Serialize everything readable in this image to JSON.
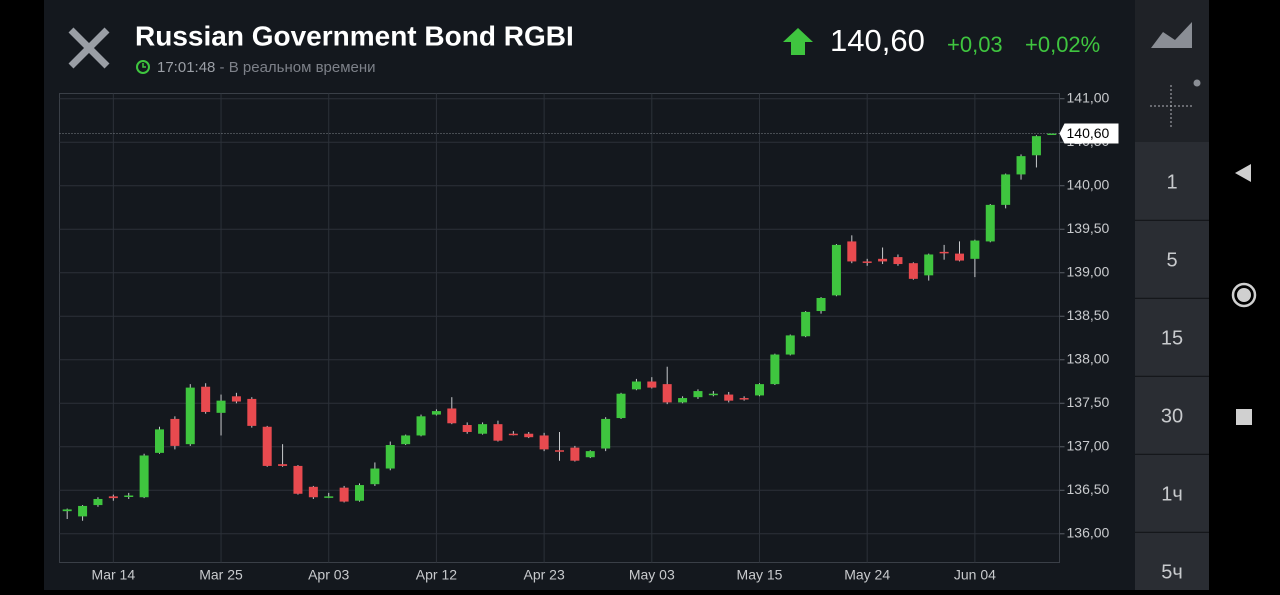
{
  "header": {
    "title": "Russian Government Bond RGBI",
    "time": "17:01:48",
    "status": " - В реальном времени",
    "price": "140,60",
    "change": "+0,03",
    "change_pct": "+0,02%"
  },
  "sidebar": {
    "intervals": [
      "1",
      "5",
      "15",
      "30",
      "1ч",
      "5ч"
    ]
  },
  "chart_data": {
    "type": "candlestick",
    "categories": [
      null,
      null,
      null,
      "Mar 14",
      null,
      null,
      null,
      null,
      null,
      null,
      "Mar 25",
      null,
      null,
      null,
      null,
      null,
      null,
      "Apr 03",
      null,
      null,
      null,
      null,
      null,
      null,
      "Apr 12",
      null,
      null,
      null,
      null,
      null,
      null,
      "Apr 23",
      null,
      null,
      null,
      null,
      null,
      null,
      "May 03",
      null,
      null,
      null,
      null,
      null,
      null,
      "May 15",
      null,
      null,
      null,
      null,
      null,
      null,
      "May 24",
      null,
      null,
      null,
      null,
      null,
      null,
      "Jun 04",
      null,
      null,
      null,
      null,
      null
    ],
    "open": [
      136.26,
      136.2,
      136.33,
      136.43,
      136.43,
      136.42,
      136.93,
      137.32,
      137.03,
      137.69,
      137.39,
      137.58,
      137.55,
      137.23,
      136.8,
      136.78,
      136.54,
      136.43,
      136.53,
      136.38,
      136.57,
      136.75,
      137.03,
      137.13,
      137.37,
      137.44,
      137.25,
      137.15,
      137.26,
      137.15,
      137.15,
      137.13,
      136.96,
      136.99,
      136.88,
      136.98,
      137.33,
      137.66,
      137.75,
      137.72,
      137.51,
      137.57,
      137.61,
      137.6,
      137.56,
      137.59,
      137.72,
      138.06,
      138.27,
      138.56,
      138.74,
      139.36,
      139.13,
      139.16,
      139.18,
      139.11,
      138.97,
      139.24,
      139.22,
      139.16,
      139.36,
      139.78,
      140.13,
      140.35,
      140.6
    ],
    "high": [
      136.29,
      136.33,
      136.42,
      136.45,
      136.47,
      136.92,
      137.23,
      137.35,
      137.72,
      137.73,
      137.6,
      137.62,
      137.57,
      137.24,
      137.03,
      136.79,
      136.55,
      136.47,
      136.55,
      136.58,
      136.82,
      137.06,
      137.14,
      137.37,
      137.43,
      137.57,
      137.28,
      137.28,
      137.3,
      137.18,
      137.17,
      137.16,
      137.17,
      137.01,
      136.96,
      137.34,
      137.62,
      137.78,
      137.8,
      137.92,
      137.58,
      137.66,
      137.64,
      137.63,
      137.58,
      137.73,
      138.07,
      138.29,
      138.56,
      138.72,
      139.33,
      139.43,
      139.16,
      139.29,
      139.21,
      139.12,
      139.22,
      139.32,
      139.36,
      139.38,
      139.79,
      140.14,
      140.36,
      140.58,
      140.6
    ],
    "low": [
      136.17,
      136.15,
      136.31,
      136.38,
      136.4,
      136.41,
      136.92,
      136.97,
      137.01,
      137.38,
      137.13,
      137.5,
      137.22,
      136.77,
      136.77,
      136.45,
      136.4,
      136.41,
      136.36,
      136.37,
      136.55,
      136.73,
      137.02,
      137.12,
      137.36,
      137.26,
      137.15,
      137.14,
      137.06,
      137.13,
      137.1,
      136.95,
      136.84,
      136.83,
      136.87,
      136.95,
      137.32,
      137.65,
      137.67,
      137.49,
      137.5,
      137.55,
      137.58,
      137.51,
      137.53,
      137.58,
      137.71,
      138.05,
      138.26,
      138.53,
      138.73,
      139.11,
      139.08,
      139.1,
      139.08,
      138.92,
      138.91,
      139.15,
      139.13,
      138.95,
      139.35,
      139.74,
      140.07,
      140.21,
      140.6
    ],
    "close": [
      136.28,
      136.32,
      136.4,
      136.41,
      136.44,
      136.9,
      137.2,
      137.01,
      137.68,
      137.4,
      137.53,
      137.52,
      137.24,
      136.78,
      136.78,
      136.46,
      136.42,
      136.43,
      136.37,
      136.56,
      136.75,
      137.02,
      137.13,
      137.35,
      137.41,
      137.27,
      137.17,
      137.26,
      137.07,
      137.14,
      137.11,
      136.97,
      136.95,
      136.84,
      136.95,
      137.32,
      137.61,
      137.75,
      137.68,
      137.51,
      137.56,
      137.64,
      137.61,
      137.53,
      137.55,
      137.72,
      138.06,
      138.28,
      138.55,
      138.71,
      139.32,
      139.13,
      139.12,
      139.13,
      139.1,
      138.93,
      139.21,
      139.23,
      139.14,
      139.37,
      139.78,
      140.13,
      140.34,
      140.57,
      140.6
    ],
    "up_color": "#3fc53f",
    "down_color": "#e84a4f",
    "ylim": [
      135.67,
      141.06
    ],
    "yticks": [
      {
        "value": 136,
        "label": "136,00"
      },
      {
        "value": 136.5,
        "label": "136,50"
      },
      {
        "value": 137,
        "label": "137,00"
      },
      {
        "value": 137.5,
        "label": "137,50"
      },
      {
        "value": 138,
        "label": "138,00"
      },
      {
        "value": 138.5,
        "label": "138,50"
      },
      {
        "value": 139,
        "label": "139,00"
      },
      {
        "value": 139.5,
        "label": "139,50"
      },
      {
        "value": 140,
        "label": "140,00"
      },
      {
        "value": 140.5,
        "label": "140,50"
      },
      {
        "value": 141,
        "label": "141,00"
      }
    ],
    "grid": true
  }
}
